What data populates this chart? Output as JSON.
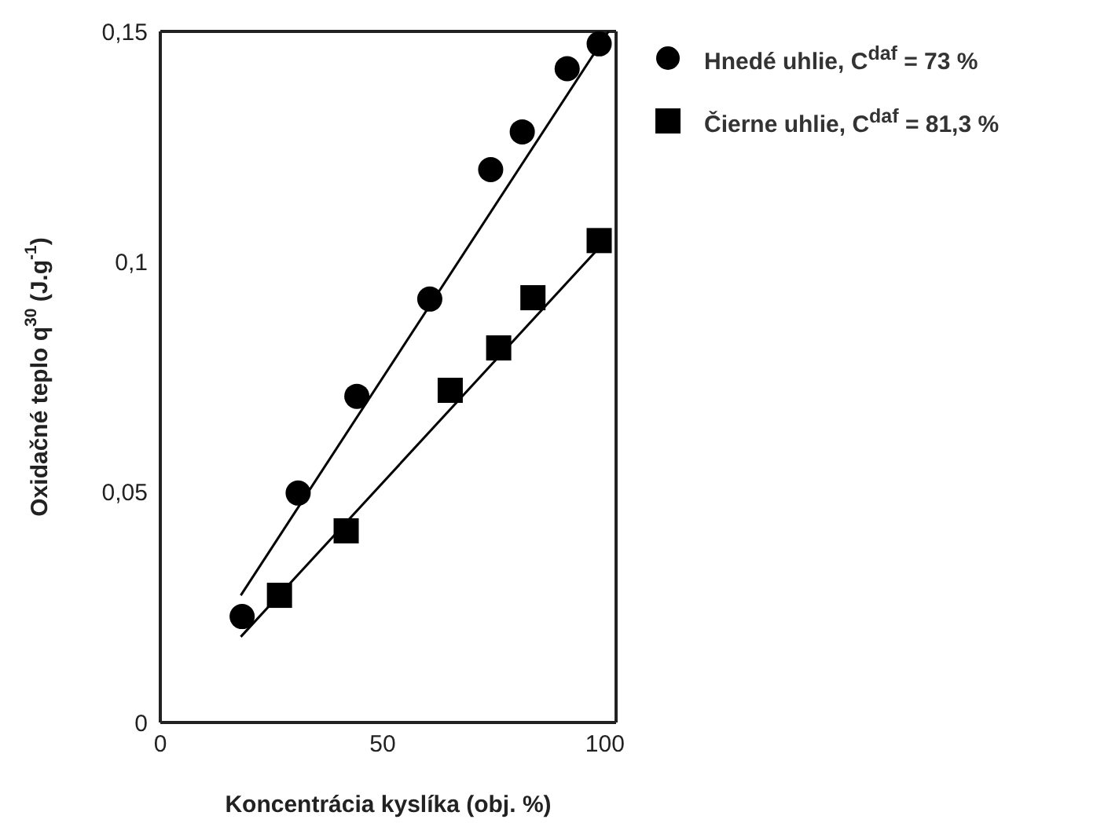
{
  "chart_data": {
    "type": "scatter",
    "xlabel": "Koncentrácia kyslíka (obj. %)",
    "ylabel": "Oxidačné teplo q$^{30}$ (J.g$^{-1}$)",
    "xlim": [
      0,
      102.5
    ],
    "ylim": [
      0,
      0.15
    ],
    "xticks": [
      0,
      50,
      100
    ],
    "yticks": [
      0,
      {
        "value": 0.05,
        "label": "0,05"
      },
      {
        "value": 0.1,
        "label": "0,1"
      },
      {
        "value": 0.15,
        "label": "0,15"
      }
    ],
    "grid": false,
    "legend": "top right",
    "series": [
      {
        "name": "Hnedé uhlie, C$^{daf}$ = 73 %",
        "marker": "circle",
        "color": "#000000",
        "x": [
          18.4,
          31,
          44.2,
          60.6,
          74.3,
          81.4,
          91.5,
          98.7
        ],
        "values": [
          0.023,
          0.0498,
          0.0708,
          0.0919,
          0.12,
          0.1282,
          0.1419,
          0.1473
        ]
      },
      {
        "name": "Čierne uhlie, C$^{daf}$ = 81,3 %",
        "marker": "square",
        "color": "#000000",
        "x": [
          26.8,
          41.8,
          65.2,
          76.1,
          83.8,
          98.7
        ],
        "values": [
          0.0276,
          0.0416,
          0.0721,
          0.0813,
          0.0922,
          0.1046
        ]
      },
      {
        "type": "line",
        "marker": "none",
        "color": "#000000",
        "x": [
          18.1,
          100.8
        ],
        "values": [
          0.0276,
          0.15
        ]
      },
      {
        "type": "line",
        "marker": "none",
        "color": "#000000",
        "x": [
          18.1,
          101.3
        ],
        "values": [
          0.0186,
          0.1058
        ]
      }
    ]
  }
}
